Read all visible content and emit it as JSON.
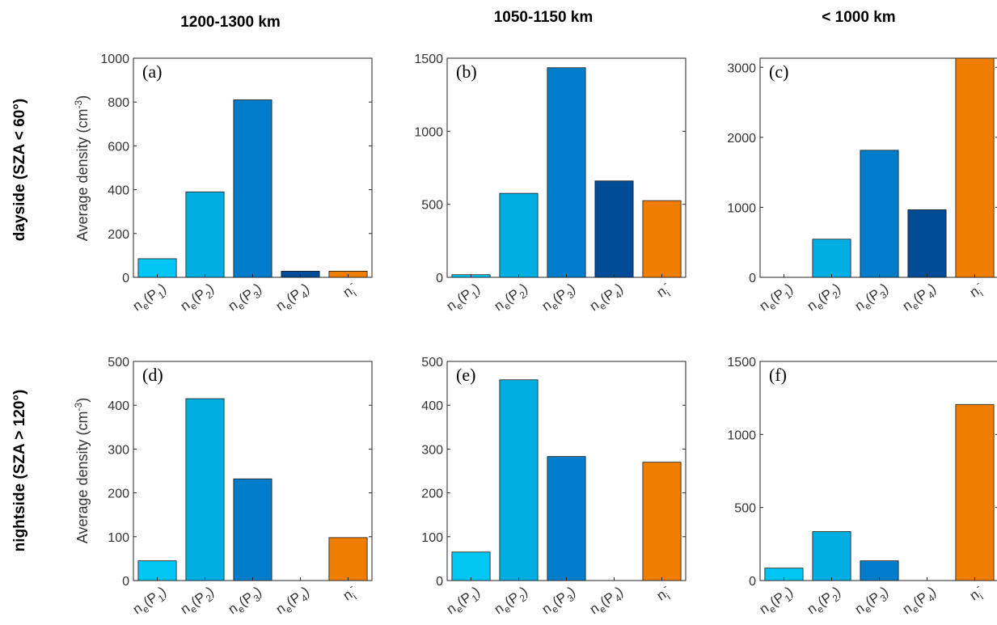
{
  "figure": {
    "columns": [
      "1200-1300 km",
      "1050-1150 km",
      "< 1000 km"
    ],
    "rows": [
      "dayside (SZA < 60°)",
      "nightside (SZA > 120°)"
    ],
    "ylabel_text": "Average density (cm",
    "ylabel_sup": "-3",
    "ylabel_close": ")"
  },
  "categories": [
    {
      "label": "n_e(P_1)",
      "base": "n",
      "sub": "e",
      "mid": "(P",
      "sub2": "1",
      "close": ")"
    },
    {
      "label": "n_e(P_2)",
      "base": "n",
      "sub": "e",
      "mid": "(P",
      "sub2": "2",
      "close": ")"
    },
    {
      "label": "n_e(P_3)",
      "base": "n",
      "sub": "e",
      "mid": "(P",
      "sub2": "3",
      "close": ")"
    },
    {
      "label": "n_e(P_4)",
      "base": "n",
      "sub": "e",
      "mid": "(P",
      "sub2": "4",
      "close": ")"
    },
    {
      "label": "n_i^-",
      "base": "n",
      "sub": "i",
      "sup": "-"
    }
  ],
  "colors": [
    "#00c5f5",
    "#00aee2",
    "#007dca",
    "#004c97",
    "#ef7d00"
  ],
  "chart_data": [
    {
      "type": "bar",
      "panel": "(a)",
      "title": "1200-1300 km",
      "row": "dayside (SZA < 60°)",
      "categories": [
        "n_e(P_1)",
        "n_e(P_2)",
        "n_e(P_3)",
        "n_e(P_4)",
        "n_i^-"
      ],
      "values": [
        85,
        390,
        810,
        28,
        28
      ],
      "ylim": [
        0,
        1000
      ],
      "yticks": [
        0,
        200,
        400,
        600,
        800,
        1000
      ]
    },
    {
      "type": "bar",
      "panel": "(b)",
      "title": "1050-1150 km",
      "row": "dayside (SZA < 60°)",
      "categories": [
        "n_e(P_1)",
        "n_e(P_2)",
        "n_e(P_3)",
        "n_e(P_4)",
        "n_i^-"
      ],
      "values": [
        18,
        575,
        1435,
        660,
        525
      ],
      "ylim": [
        0,
        1500
      ],
      "yticks": [
        0,
        500,
        1000,
        1500
      ]
    },
    {
      "type": "bar",
      "panel": "(c)",
      "title": "< 1000 km",
      "row": "dayside (SZA < 60°)",
      "categories": [
        "n_e(P_1)",
        "n_e(P_2)",
        "n_e(P_3)",
        "n_e(P_4)",
        "n_i^-"
      ],
      "values": [
        0,
        545,
        1815,
        965,
        3130
      ],
      "ylim": [
        0,
        3130
      ],
      "yticks": [
        0,
        1000,
        2000,
        3000
      ]
    },
    {
      "type": "bar",
      "panel": "(d)",
      "title": "1200-1300 km",
      "row": "nightside (SZA > 120°)",
      "categories": [
        "n_e(P_1)",
        "n_e(P_2)",
        "n_e(P_3)",
        "n_e(P_4)",
        "n_i^-"
      ],
      "values": [
        45,
        415,
        232,
        0,
        98
      ],
      "ylim": [
        0,
        500
      ],
      "yticks": [
        0,
        100,
        200,
        300,
        400,
        500
      ]
    },
    {
      "type": "bar",
      "panel": "(e)",
      "title": "1050-1150 km",
      "row": "nightside (SZA > 120°)",
      "categories": [
        "n_e(P_1)",
        "n_e(P_2)",
        "n_e(P_3)",
        "n_e(P_4)",
        "n_i^-"
      ],
      "values": [
        65,
        458,
        283,
        0,
        270
      ],
      "ylim": [
        0,
        500
      ],
      "yticks": [
        0,
        100,
        200,
        300,
        400,
        500
      ]
    },
    {
      "type": "bar",
      "panel": "(f)",
      "title": "< 1000 km",
      "row": "nightside (SZA > 120°)",
      "categories": [
        "n_e(P_1)",
        "n_e(P_2)",
        "n_e(P_3)",
        "n_e(P_4)",
        "n_i^-"
      ],
      "values": [
        85,
        335,
        135,
        0,
        1205
      ],
      "ylim": [
        0,
        1500
      ],
      "yticks": [
        0,
        500,
        1000,
        1500
      ]
    }
  ]
}
